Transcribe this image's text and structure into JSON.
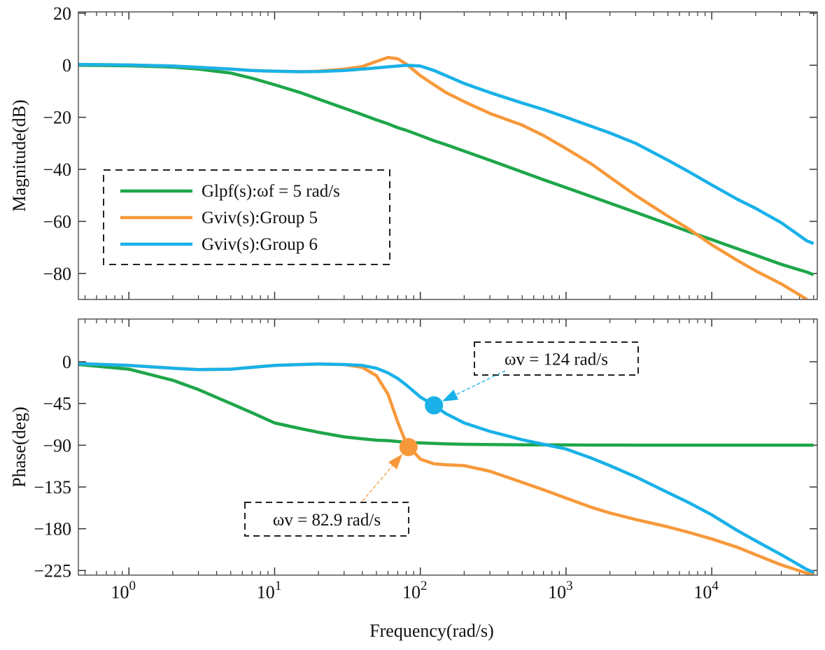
{
  "chart_data": [
    {
      "type": "line",
      "ylabel": "Magnitude(dB)",
      "xscale": "log",
      "xlim": [
        0.45,
        53000
      ],
      "ylim": [
        -90,
        20.5
      ],
      "xticks": [
        {
          "value": 1,
          "label": "10",
          "exponent": "0"
        },
        {
          "value": 10,
          "label": "10",
          "exponent": "1"
        },
        {
          "value": 100,
          "label": "10",
          "exponent": "2"
        },
        {
          "value": 1000,
          "label": "10",
          "exponent": "3"
        },
        {
          "value": 10000,
          "label": "10",
          "exponent": "4"
        }
      ],
      "yticks": [
        {
          "value": -80,
          "label": "−80"
        },
        {
          "value": -60,
          "label": "−60"
        },
        {
          "value": -40,
          "label": "−40"
        },
        {
          "value": -20,
          "label": "−20"
        },
        0,
        20
      ],
      "x": [
        0.45,
        1,
        2,
        3,
        5,
        7,
        10,
        15,
        20,
        30,
        40,
        50,
        60,
        70,
        80,
        100,
        124,
        150,
        200,
        300,
        500,
        700,
        1000,
        1500,
        2000,
        3000,
        5000,
        7000,
        10000,
        15000,
        20000,
        30000,
        45000,
        50000
      ],
      "series": [
        {
          "name": "Glpf(s):ωf = 5 rad/s",
          "color": "#1ea64a",
          "values": [
            0,
            -0.2,
            -0.7,
            -1.5,
            -3,
            -5,
            -7.5,
            -10.5,
            -13,
            -16.5,
            -19,
            -21,
            -22.5,
            -24,
            -25,
            -27,
            -29,
            -30.5,
            -33,
            -36.5,
            -41,
            -44,
            -47,
            -50.5,
            -53,
            -56.5,
            -61,
            -64,
            -67,
            -70.5,
            -73,
            -76.5,
            -79.5,
            -80.5
          ]
        },
        {
          "name": "Gviv(s):Group 5",
          "color": "#f7993b",
          "values": [
            0.3,
            0.1,
            -0.3,
            -0.8,
            -1.5,
            -2,
            -2.3,
            -2.5,
            -2.3,
            -1.5,
            -0.5,
            1.5,
            3,
            2.5,
            0.5,
            -4,
            -7.5,
            -10.5,
            -14,
            -18.5,
            -23,
            -27,
            -32,
            -38,
            -43,
            -50,
            -58,
            -63,
            -69,
            -75,
            -79,
            -84,
            -90,
            null
          ]
        },
        {
          "name": "Gviv(s):Group 6",
          "color": "#19b1e8",
          "values": [
            0.3,
            0.1,
            -0.3,
            -0.8,
            -1.5,
            -2,
            -2.3,
            -2.5,
            -2.4,
            -2,
            -1.5,
            -1,
            -0.6,
            -0.3,
            0,
            -0.3,
            -2,
            -4,
            -7,
            -10.5,
            -14.5,
            -17,
            -20,
            -23.5,
            -26,
            -30,
            -36.5,
            -41,
            -46,
            -51.5,
            -55,
            -60.5,
            -67.5,
            -68.5
          ]
        }
      ]
    },
    {
      "type": "line",
      "ylabel": "Phase(deg)",
      "xlabel": "Frequency(rad/s)",
      "xscale": "log",
      "xlim": [
        0.45,
        53000
      ],
      "ylim": [
        -230,
        46
      ],
      "xticks": [
        {
          "value": 1,
          "label": "10",
          "exponent": "0"
        },
        {
          "value": 10,
          "label": "10",
          "exponent": "1"
        },
        {
          "value": 100,
          "label": "10",
          "exponent": "2"
        },
        {
          "value": 1000,
          "label": "10",
          "exponent": "3"
        },
        {
          "value": 10000,
          "label": "10",
          "exponent": "4"
        }
      ],
      "yticks": [
        {
          "value": -225,
          "label": "−225"
        },
        {
          "value": -180,
          "label": "−180"
        },
        {
          "value": -135,
          "label": "−135"
        },
        {
          "value": -90,
          "label": "−90"
        },
        {
          "value": -45,
          "label": "−45"
        },
        0
      ],
      "x": [
        0.45,
        1,
        2,
        3,
        5,
        7,
        10,
        15,
        20,
        30,
        40,
        50,
        60,
        70,
        80,
        100,
        124,
        150,
        200,
        300,
        500,
        700,
        1000,
        1500,
        2000,
        3000,
        5000,
        7000,
        10000,
        15000,
        20000,
        30000,
        45000,
        50000
      ],
      "series": [
        {
          "name": "Glpf(s):ωf = 5 rad/s",
          "color": "#1ea64a",
          "values": [
            -3,
            -8,
            -20,
            -30,
            -45,
            -55,
            -66,
            -72,
            -76,
            -81,
            -83,
            -84.5,
            -85,
            -86,
            -87,
            -87.5,
            -88,
            -88.5,
            -89,
            -89.3,
            -89.5,
            -89.6,
            -89.7,
            -89.8,
            -89.8,
            -89.9,
            -89.9,
            -89.9,
            -90,
            -90,
            -90,
            -90,
            -90,
            -90
          ]
        },
        {
          "name": "Gviv(s):Group 5",
          "color": "#f7993b",
          "values": [
            -2,
            -4,
            -7,
            -8.5,
            -8,
            -6,
            -4,
            -3,
            -2.5,
            -3,
            -6,
            -15,
            -35,
            -65,
            -88,
            -105,
            -110,
            -111,
            -112,
            -118,
            -130,
            -138,
            -147,
            -157,
            -163,
            -170,
            -178,
            -184,
            -191,
            -200,
            -208,
            -219,
            -228,
            -230
          ]
        },
        {
          "name": "Gviv(s):Group 6",
          "color": "#19b1e8",
          "values": [
            -2,
            -4,
            -7,
            -8.5,
            -8,
            -6,
            -4,
            -3,
            -2.5,
            -3,
            -4,
            -7,
            -12,
            -18,
            -25,
            -38,
            -47,
            -56,
            -66,
            -75,
            -84,
            -89,
            -94,
            -104,
            -112,
            -124,
            -141,
            -152,
            -165,
            -182,
            -193,
            -208,
            -224,
            -227
          ]
        }
      ],
      "annotations": [
        {
          "text": "ωv = 124 rad/s",
          "x": 124,
          "y": -47,
          "color": "#19b1e8"
        },
        {
          "text": "ωv = 82.9 rad/s",
          "x": 82.9,
          "y": -92,
          "color": "#f7993b"
        }
      ]
    }
  ]
}
